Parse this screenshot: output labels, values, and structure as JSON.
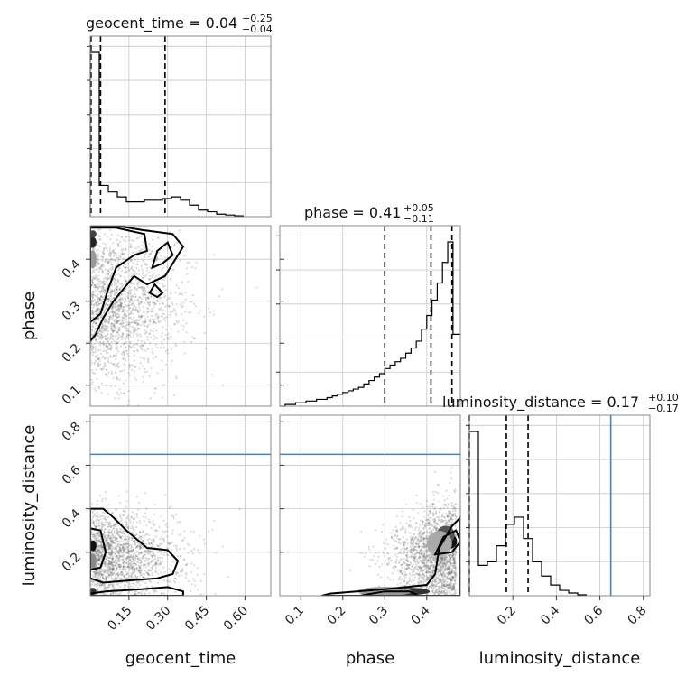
{
  "chart_data": {
    "type": "corner",
    "parameters": [
      "geocent_time",
      "phase",
      "luminosity_distance"
    ],
    "axis_labels": {
      "geocent_time": "geocent_time",
      "phase": "phase",
      "luminosity_distance": "luminosity_distance"
    },
    "ranges": {
      "geocent_time": [
        0.0,
        0.7
      ],
      "phase": [
        0.05,
        0.48
      ],
      "luminosity_distance": [
        0.0,
        0.83
      ]
    },
    "ticks": {
      "geocent_time": [
        0.15,
        0.3,
        0.45,
        0.6
      ],
      "geocent_time_labels": [
        "0.15",
        "0.30",
        "0.45",
        "0.60"
      ],
      "phase": [
        0.1,
        0.2,
        0.3,
        0.4
      ],
      "phase_labels": [
        "0.1",
        "0.2",
        "0.3",
        "0.4"
      ],
      "luminosity_distance": [
        0.2,
        0.4,
        0.6,
        0.8
      ],
      "luminosity_distance_labels": [
        "0.2",
        "0.4",
        "0.6",
        "0.8"
      ]
    },
    "titles": [
      {
        "name": "geocent_time",
        "median": "0.04",
        "plus": "+0.25",
        "minus": "−0.04"
      },
      {
        "name": "phase",
        "median": "0.41",
        "plus": "+0.05",
        "minus": "−0.11"
      },
      {
        "name": "luminosity_distance",
        "median": "0.17",
        "plus": "+0.10",
        "minus": "−0.17"
      }
    ],
    "quantiles": {
      "geocent_time": [
        0.003,
        0.04,
        0.29
      ],
      "phase": [
        0.3,
        0.41,
        0.46
      ],
      "luminosity_distance": [
        0.0,
        0.17,
        0.27
      ]
    },
    "truths": {
      "geocent_time": null,
      "phase": null,
      "luminosity_distance": 0.65
    },
    "histograms": {
      "geocent_time": {
        "edges": [
          0.0,
          0.035,
          0.07,
          0.105,
          0.14,
          0.175,
          0.21,
          0.245,
          0.28,
          0.315,
          0.35,
          0.385,
          0.42,
          0.455,
          0.49,
          0.525,
          0.56,
          0.595
        ],
        "values": [
          1.0,
          0.19,
          0.15,
          0.12,
          0.09,
          0.09,
          0.1,
          0.1,
          0.11,
          0.12,
          0.1,
          0.07,
          0.04,
          0.03,
          0.015,
          0.01,
          0.005
        ]
      },
      "phase": {
        "edges": [
          0.05,
          0.0625,
          0.075,
          0.0875,
          0.1,
          0.1125,
          0.125,
          0.1375,
          0.15,
          0.1625,
          0.175,
          0.1875,
          0.2,
          0.2125,
          0.225,
          0.2375,
          0.25,
          0.2625,
          0.275,
          0.2875,
          0.3,
          0.3125,
          0.325,
          0.3375,
          0.35,
          0.3625,
          0.375,
          0.3875,
          0.4,
          0.4125,
          0.425,
          0.4375,
          0.45,
          0.4625,
          0.48
        ],
        "values": [
          0.0,
          0.01,
          0.01,
          0.02,
          0.02,
          0.03,
          0.03,
          0.04,
          0.04,
          0.05,
          0.06,
          0.07,
          0.08,
          0.09,
          0.1,
          0.11,
          0.13,
          0.15,
          0.17,
          0.19,
          0.22,
          0.24,
          0.26,
          0.28,
          0.31,
          0.34,
          0.38,
          0.45,
          0.53,
          0.62,
          0.72,
          0.84,
          0.96,
          0.42
        ]
      },
      "luminosity_distance": {
        "edges": [
          0.0,
          0.0415,
          0.083,
          0.1245,
          0.166,
          0.2075,
          0.249,
          0.2905,
          0.332,
          0.3735,
          0.415,
          0.4565,
          0.498,
          0.5395
        ],
        "values": [
          0.92,
          0.17,
          0.19,
          0.28,
          0.4,
          0.44,
          0.32,
          0.19,
          0.11,
          0.06,
          0.03,
          0.015,
          0.005
        ]
      }
    }
  }
}
